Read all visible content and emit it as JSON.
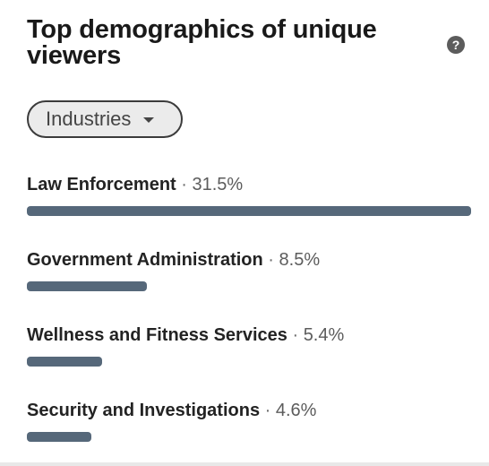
{
  "card": {
    "title": "Top demographics of unique viewers",
    "help_icon": "help-circle-icon",
    "help_glyph": "?"
  },
  "filter": {
    "selected": "Industries",
    "caret_icon": "caret-down-icon"
  },
  "colors": {
    "bar": "#56687a",
    "text_primary": "#191919",
    "text_secondary": "#5c5c5c"
  },
  "metrics": [
    {
      "name": "Law Enforcement",
      "separator": "·",
      "value": "31.5%",
      "percent": 31.5,
      "bar_fraction": 1.0
    },
    {
      "name": "Government Administration",
      "separator": "·",
      "value": "8.5%",
      "percent": 8.5,
      "bar_fraction": 0.27
    },
    {
      "name": "Wellness and Fitness Services",
      "separator": "·",
      "value": "5.4%",
      "percent": 5.4,
      "bar_fraction": 0.17
    },
    {
      "name": "Security and Investigations",
      "separator": "·",
      "value": "4.6%",
      "percent": 4.6,
      "bar_fraction": 0.146
    }
  ]
}
